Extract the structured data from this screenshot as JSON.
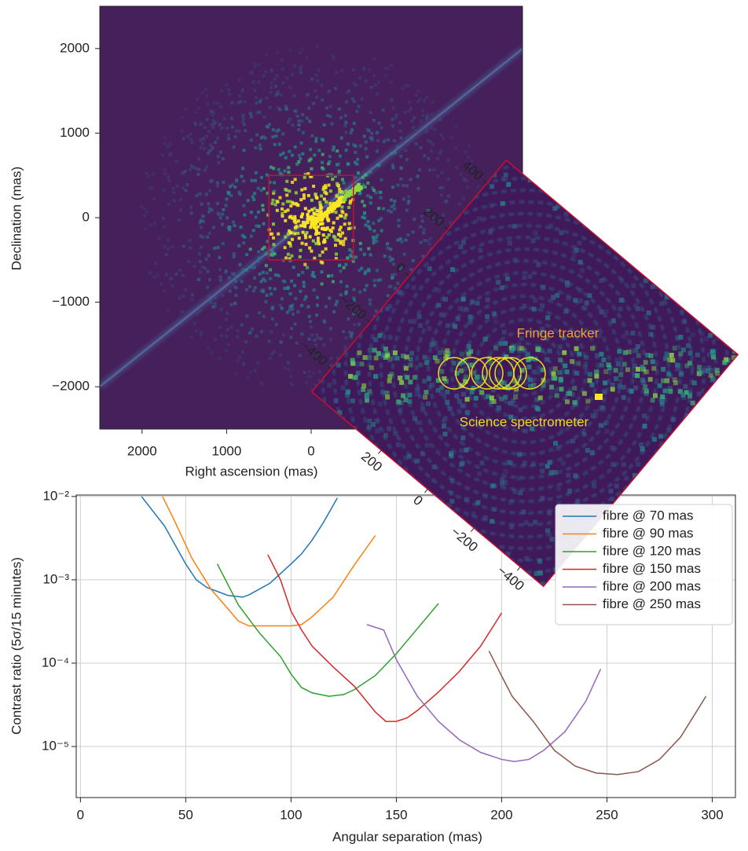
{
  "chart_data": [
    {
      "type": "image",
      "xlabel": "Right ascension (mas)",
      "ylabel": "Declination (mas)",
      "xlim": [
        2500,
        -2500
      ],
      "ylim": [
        -2500,
        2500
      ],
      "xticks": [
        2000,
        1000,
        0
      ],
      "yticks": [
        2000,
        1000,
        0,
        {
          "value": -1000,
          "label": "−1000"
        },
        {
          "value": -2000,
          "label": "−2000"
        }
      ],
      "inset_extent": [
        -500,
        500
      ]
    },
    {
      "type": "image",
      "xlim": [
        500,
        -500
      ],
      "ylim": [
        -500,
        500
      ],
      "xticks": [
        200,
        0,
        {
          "value": -200,
          "label": "−200"
        },
        {
          "value": -400,
          "label": "−400"
        }
      ],
      "yticks": [
        400,
        200,
        0,
        {
          "value": -200,
          "label": "−200"
        },
        {
          "value": -400,
          "label": "−400"
        }
      ],
      "annotations": [
        "Fringe tracker",
        "Science spectrometer"
      ]
    },
    {
      "type": "line",
      "xlabel": "Angular separation (mas)",
      "ylabel": "Contrast ratio (5σ/15 minutes)",
      "log_y": true,
      "grid": true,
      "legend": "upper right",
      "xlim": [
        -2,
        311
      ],
      "ylim": [
        2.44e-06,
        0.0104
      ],
      "xticks": [
        0,
        50,
        100,
        150,
        200,
        250,
        300
      ],
      "yticks": [
        {
          "value": 0.01,
          "label": "10⁻²"
        },
        {
          "value": 0.001,
          "label": "10⁻³"
        },
        {
          "value": 0.0001,
          "label": "10⁻⁴"
        },
        {
          "value": 1e-05,
          "label": "10⁻⁵"
        }
      ],
      "series": [
        {
          "name": "fibre @ 70 mas",
          "color": "#1f77b4",
          "x": [
            29,
            40,
            50,
            55,
            60,
            70,
            77,
            80,
            90,
            100,
            105,
            110,
            115,
            122
          ],
          "values": [
            0.01,
            0.0044,
            0.00155,
            0.001,
            0.00081,
            0.00065,
            0.00062,
            0.00066,
            0.00091,
            0.00155,
            0.00205,
            0.003,
            0.0047,
            0.0096
          ]
        },
        {
          "name": "fibre @ 90 mas",
          "color": "#ff7f0e",
          "x": [
            39,
            45,
            53,
            62,
            70,
            75,
            80,
            90,
            100,
            105,
            110,
            120,
            130,
            140
          ],
          "values": [
            0.01,
            0.0049,
            0.0018,
            0.00077,
            0.00045,
            0.00032,
            0.00028,
            0.00028,
            0.00028,
            0.00029,
            0.00036,
            0.00062,
            0.0015,
            0.0034
          ]
        },
        {
          "name": "fibre @ 120 mas",
          "color": "#2ca02c",
          "x": [
            65,
            75,
            85,
            95,
            100,
            105,
            110,
            118,
            125,
            130,
            140,
            150,
            160,
            170
          ],
          "values": [
            0.00155,
            0.0005,
            0.00023,
            0.00012,
            7.4e-05,
            5.1e-05,
            4.4e-05,
            4e-05,
            4.2e-05,
            4.8e-05,
            7.1e-05,
            0.00013,
            0.00026,
            0.00052
          ]
        },
        {
          "name": "fibre @ 150 mas",
          "color": "#d62728",
          "x": [
            89,
            95,
            100,
            105,
            110,
            120,
            130,
            140,
            145,
            150,
            155,
            160,
            170,
            180,
            190,
            200
          ],
          "values": [
            0.002,
            0.001,
            0.00042,
            0.00025,
            0.00016,
            9e-05,
            5.3e-05,
            2.6e-05,
            2e-05,
            2e-05,
            2.2e-05,
            2.7e-05,
            4.5e-05,
            8e-05,
            0.00016,
            0.0004
          ]
        },
        {
          "name": "fibre @ 200 mas",
          "color": "#9467bd",
          "x": [
            136,
            144,
            150,
            160,
            170,
            180,
            190,
            200,
            206,
            213,
            220,
            230,
            240,
            247
          ],
          "values": [
            0.00029,
            0.00025,
            0.00011,
            4e-05,
            2e-05,
            1.2e-05,
            8.5e-06,
            7e-06,
            6.6e-06,
            7e-06,
            9e-06,
            1.5e-05,
            3.5e-05,
            8.5e-05
          ]
        },
        {
          "name": "fibre @ 250 mas",
          "color": "#8c564b",
          "x": [
            194,
            200,
            205,
            215,
            225,
            235,
            245,
            255,
            265,
            275,
            285,
            297
          ],
          "values": [
            0.00014,
            7e-05,
            4e-05,
            2e-05,
            9e-06,
            5.8e-06,
            4.8e-06,
            4.6e-06,
            5e-06,
            7e-06,
            1.3e-05,
            4e-05
          ]
        }
      ]
    }
  ]
}
